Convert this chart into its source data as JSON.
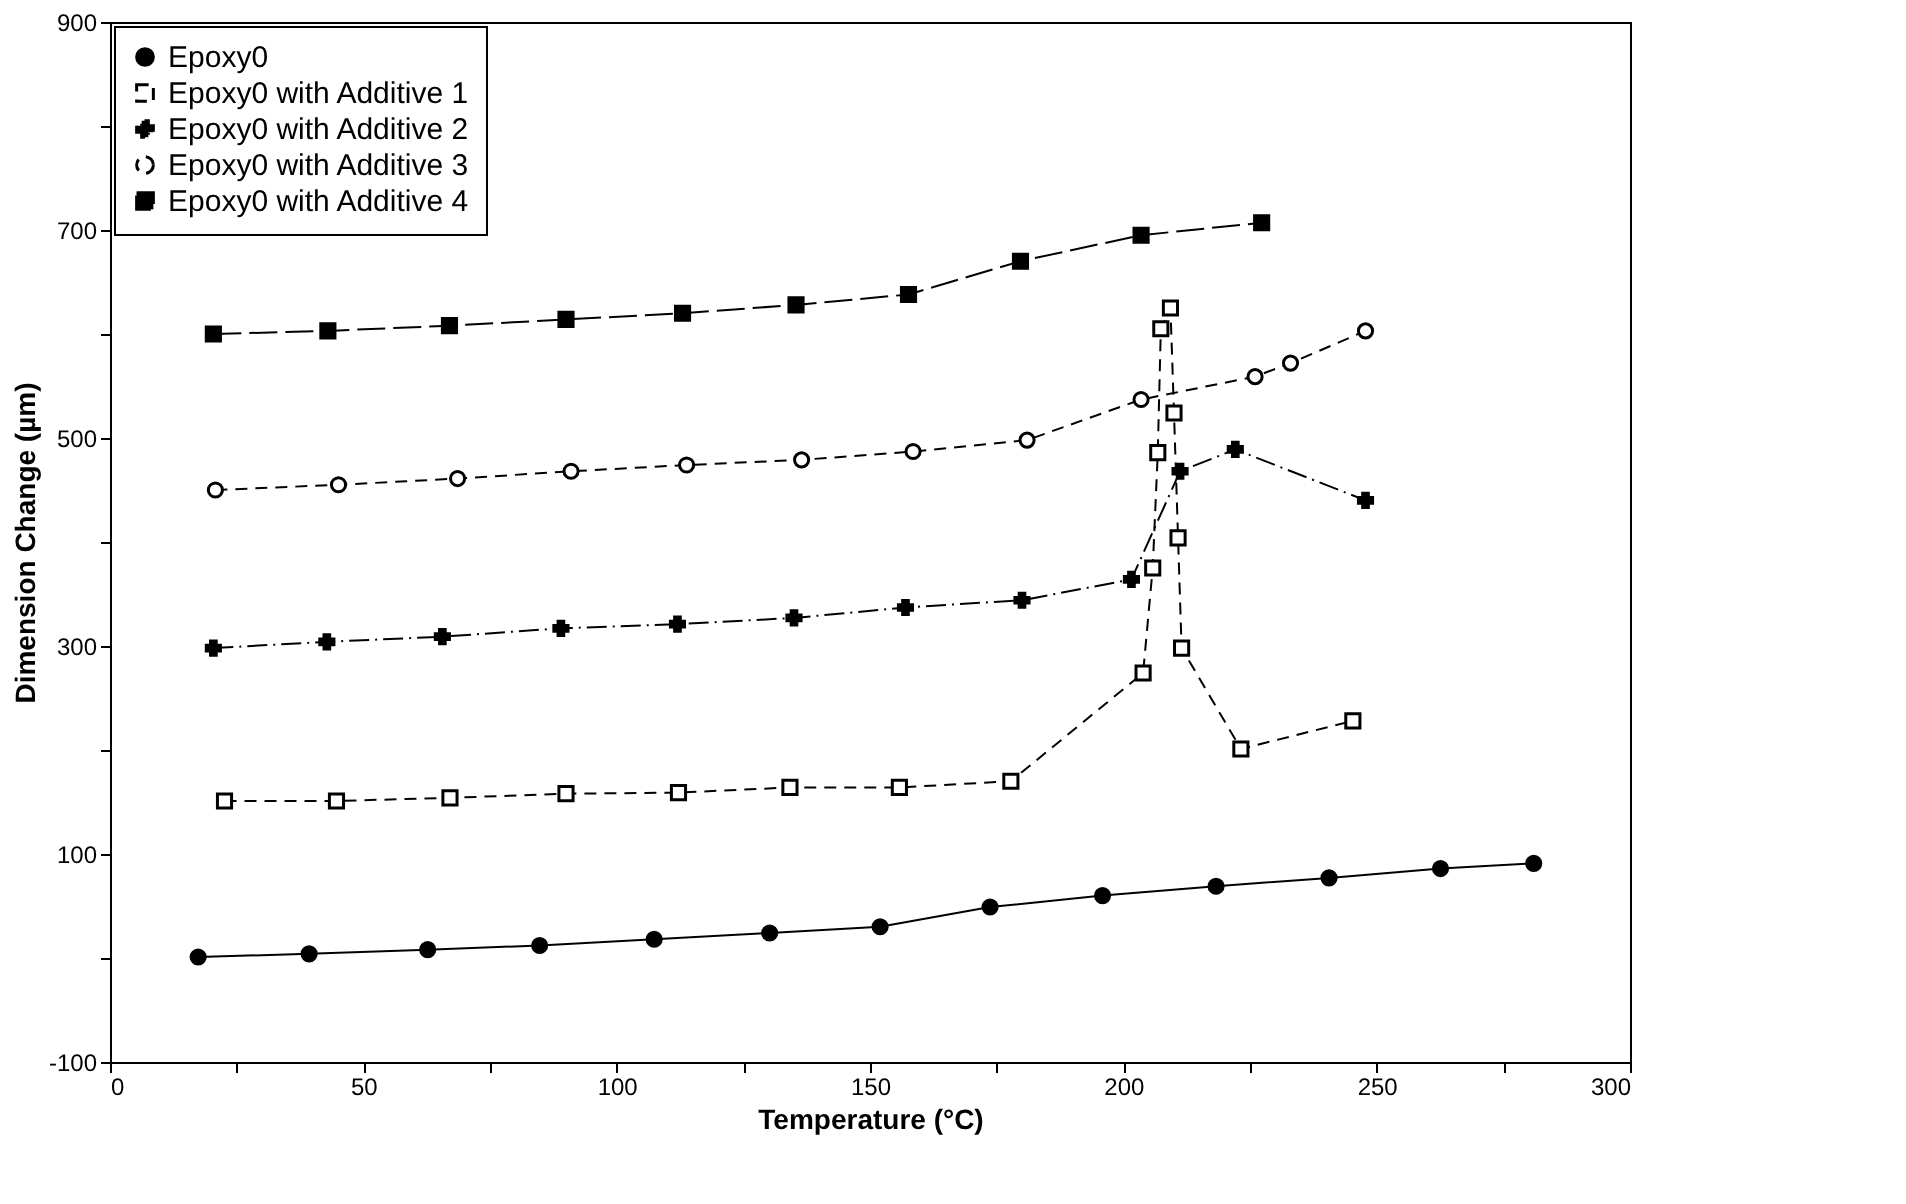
{
  "chart_data": {
    "type": "line",
    "xlabel": "Temperature (°C)",
    "ylabel": "Dimension Change (µm)",
    "xlim": [
      0,
      300
    ],
    "ylim": [
      -100,
      900
    ],
    "xticks": [
      0,
      {
        "value": 25,
        "label": null
      },
      50,
      {
        "value": 75,
        "label": null
      },
      100,
      {
        "value": 125,
        "label": null
      },
      150,
      {
        "value": 175,
        "label": null
      },
      200,
      {
        "value": 225,
        "label": null
      },
      250,
      {
        "value": 275,
        "label": null
      },
      300
    ],
    "yticks": [
      -100,
      {
        "value": 0,
        "label": null
      },
      100,
      {
        "value": 200,
        "label": null
      },
      300,
      {
        "value": 400,
        "label": null
      },
      500,
      {
        "value": 600,
        "label": null
      },
      700,
      {
        "value": 800,
        "label": null
      },
      900
    ],
    "grid": false,
    "legend": "top left",
    "series": [
      {
        "name": "Epoxy0",
        "color": "#000000",
        "marker": "circle",
        "line_style": "solid",
        "x": [
          17.4,
          39.3,
          62.7,
          84.8,
          107.4,
          130.2,
          152,
          173.7,
          195.9,
          218.3,
          240.6,
          262.6,
          281
        ],
        "values": [
          1,
          4,
          8,
          12,
          18,
          24,
          30,
          49,
          60,
          69,
          77,
          86,
          91
        ]
      },
      {
        "name": "Epoxy0 with Additive 1",
        "color": "#000000",
        "marker": "square",
        "line_style": "dashed",
        "x": [
          22.6,
          44.7,
          67.1,
          90,
          112.2,
          134.2,
          155.8,
          177.8,
          203.9,
          205.8,
          206.8,
          207.4,
          209.3,
          210,
          210.8,
          211.5,
          223.2,
          245.3
        ],
        "values": [
          151,
          151,
          154,
          158,
          159,
          164,
          164,
          170,
          274,
          375,
          486,
          605,
          625,
          524,
          404,
          298,
          201,
          228
        ]
      },
      {
        "name": "Epoxy0 with Additive 2",
        "color": "#000000",
        "marker": "cross",
        "line_style": "dashdot",
        "x": [
          20.4,
          42.8,
          65.6,
          89,
          112,
          135,
          157,
          180,
          201.6,
          211.2,
          222.1,
          247.8
        ],
        "values": [
          298,
          304,
          309,
          317,
          321,
          327,
          337,
          344,
          364,
          468,
          489,
          440
        ]
      },
      {
        "name": "Epoxy0 with Additive 3",
        "color": "#000000",
        "marker": "circle_open",
        "line_style": "dashed",
        "x": [
          20.8,
          45.1,
          68.6,
          91,
          113.8,
          136.5,
          158.5,
          181,
          203.5,
          226,
          233,
          247.8
        ],
        "values": [
          450,
          455,
          461,
          468,
          474,
          479,
          487,
          498,
          537,
          559,
          572,
          603
        ]
      },
      {
        "name": "Epoxy0 with Additive 4",
        "color": "#000000",
        "marker": "square_filled",
        "line_style": "longdash",
        "x": [
          20.4,
          43,
          67,
          90,
          113,
          135.4,
          157.6,
          179.7,
          203.5,
          227.3
        ],
        "values": [
          600,
          603,
          608,
          614,
          620,
          628,
          638,
          670,
          695,
          707
        ]
      }
    ]
  }
}
